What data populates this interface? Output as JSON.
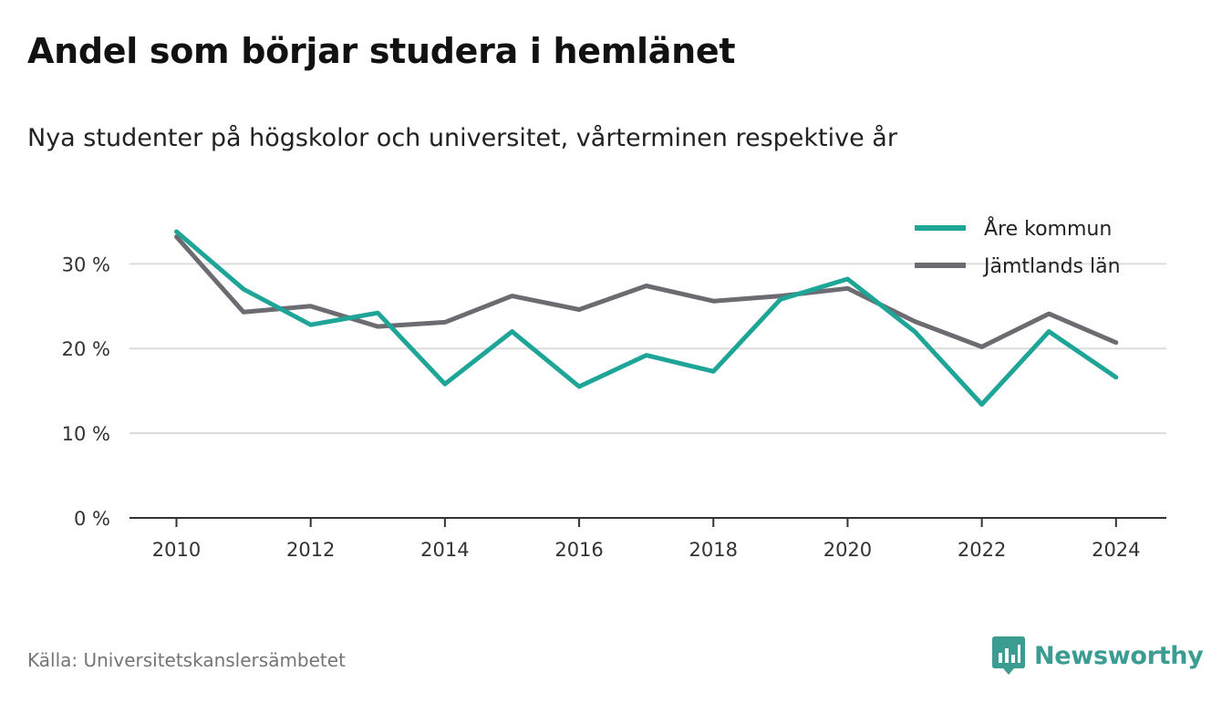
{
  "header": {
    "title": "Andel som börjar studera i hemlänet",
    "subtitle": "Nya studenter på högskolor och universitet, vårterminen respektive år"
  },
  "footer": {
    "source": "Källa: Universitetskanslersämbetet",
    "brand": "Newsworthy",
    "brand_icon": "newsworthy-logo-icon"
  },
  "chart_data": {
    "type": "line",
    "x": [
      2010,
      2011,
      2012,
      2013,
      2014,
      2015,
      2016,
      2017,
      2018,
      2019,
      2020,
      2021,
      2022,
      2023,
      2024
    ],
    "series": [
      {
        "name": "Åre kommun",
        "color": "#1ea597",
        "values": [
          33.8,
          27.0,
          22.8,
          24.2,
          15.8,
          22.0,
          15.5,
          19.2,
          17.3,
          25.8,
          28.2,
          22.0,
          13.4,
          22.0,
          16.6
        ]
      },
      {
        "name": "Jämtlands län",
        "color": "#6c6b72",
        "values": [
          33.2,
          24.3,
          25.0,
          22.6,
          23.1,
          26.2,
          24.6,
          27.4,
          25.6,
          26.2,
          27.1,
          23.2,
          20.2,
          24.1,
          20.7
        ]
      }
    ],
    "x_ticks": [
      2010,
      2012,
      2014,
      2016,
      2018,
      2020,
      2022,
      2024
    ],
    "x_tick_labels": [
      "2010",
      "2012",
      "2014",
      "2016",
      "2018",
      "2020",
      "2022",
      "2024"
    ],
    "y_ticks": [
      0,
      10,
      20,
      30
    ],
    "y_tick_labels": [
      "0 %",
      "10 %",
      "20 %",
      "30 %"
    ],
    "xlim": [
      2009.3,
      2024.75
    ],
    "ylim": [
      0,
      38
    ],
    "grid": true,
    "legend_position": "top-right"
  }
}
